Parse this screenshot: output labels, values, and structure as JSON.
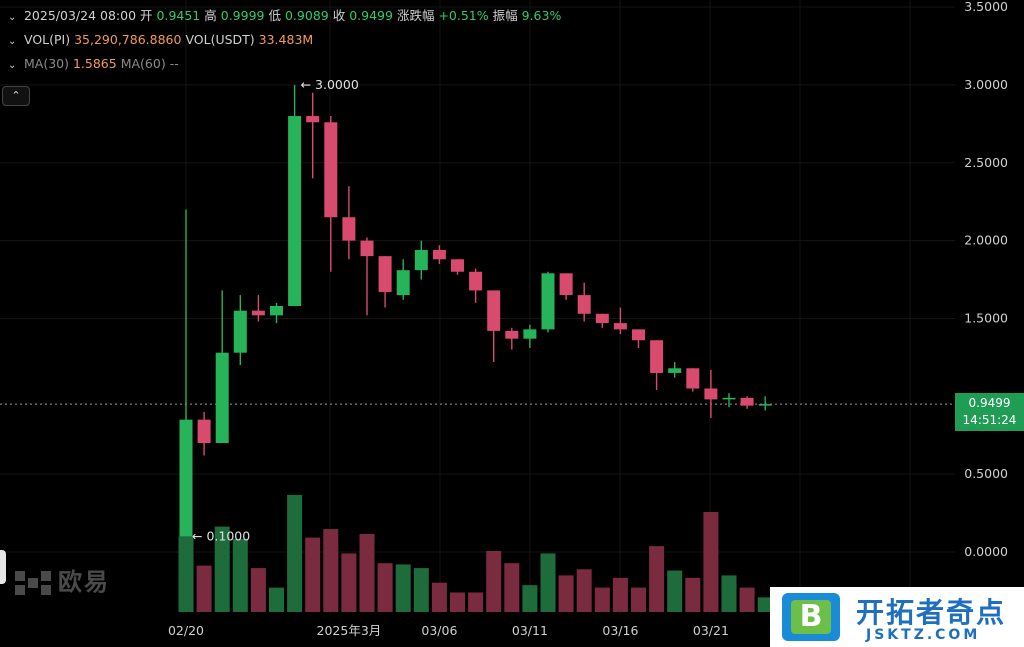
{
  "legend": {
    "row1": {
      "date": "2025/03/24 08:00",
      "open_label": "开",
      "open": "0.9451",
      "high_label": "高",
      "high": "0.9999",
      "low_label": "低",
      "low": "0.9089",
      "close_label": "收",
      "close": "0.9499",
      "change_label": "涨跌幅",
      "change": "+0.51%",
      "amp_label": "振幅",
      "amp": "9.63%"
    },
    "row2": {
      "vol_pi_label": "VOL(PI)",
      "vol_pi": "35,290,786.8860",
      "vol_usdt_label": "VOL(USDT)",
      "vol_usdt": "33.483M"
    },
    "row3": {
      "ma30_label": "MA(30)",
      "ma30": "1.5865",
      "ma60_label": "MA(60)",
      "ma60": "--"
    }
  },
  "collapse_icon": "chevron-up-icon",
  "current_price": {
    "price": "0.9499",
    "countdown": "14:51:24"
  },
  "watermark": {
    "text": "欧易"
  },
  "corner_badge": {
    "logo_letter": "B",
    "title": "开拓者奇点",
    "subtitle": "JSKTZ.COM"
  },
  "colors": {
    "up": "#26b35a",
    "down": "#d84a6e",
    "vol_up": "#1e6b3c",
    "vol_down": "#7a2b40"
  },
  "chart_data": {
    "type": "candlestick",
    "y_axis_ticks": [
      "3.5000",
      "3.0000",
      "2.5000",
      "2.0000",
      "1.5000",
      "0.9499",
      "0.5000",
      "0.0000"
    ],
    "ylim": [
      0,
      3.5
    ],
    "x_axis_labels": [
      {
        "label": "02/20",
        "index": 0
      },
      {
        "label": "2025年3月",
        "index": 9
      },
      {
        "label": "03/06",
        "index": 14
      },
      {
        "label": "03/11",
        "index": 19
      },
      {
        "label": "03/16",
        "index": 24
      },
      {
        "label": "03/21",
        "index": 29
      }
    ],
    "annotations": [
      {
        "text": "← 3.0000",
        "index": 6,
        "value": 3.0
      },
      {
        "text": "← 0.1000",
        "index": 0,
        "value": 0.1
      }
    ],
    "candles": [
      {
        "date": "02/20",
        "o": 0.1,
        "h": 2.2,
        "l": 0.1,
        "c": 0.85,
        "v": 0.62
      },
      {
        "date": "02/21",
        "o": 0.85,
        "h": 0.9,
        "l": 0.62,
        "c": 0.7,
        "v": 0.38
      },
      {
        "date": "02/22",
        "o": 0.7,
        "h": 1.68,
        "l": 0.7,
        "c": 1.28,
        "v": 0.7
      },
      {
        "date": "02/23",
        "o": 1.28,
        "h": 1.65,
        "l": 1.2,
        "c": 1.55,
        "v": 0.6
      },
      {
        "date": "02/24",
        "o": 1.55,
        "h": 1.65,
        "l": 1.48,
        "c": 1.52,
        "v": 0.36
      },
      {
        "date": "02/25",
        "o": 1.52,
        "h": 1.6,
        "l": 1.47,
        "c": 1.58,
        "v": 0.2
      },
      {
        "date": "02/26",
        "o": 1.58,
        "h": 3.0,
        "l": 1.58,
        "c": 2.8,
        "v": 0.96
      },
      {
        "date": "02/27",
        "o": 2.8,
        "h": 2.95,
        "l": 2.4,
        "c": 2.76,
        "v": 0.61
      },
      {
        "date": "02/28",
        "o": 2.76,
        "h": 2.8,
        "l": 1.8,
        "c": 2.15,
        "v": 0.68
      },
      {
        "date": "03/01",
        "o": 2.15,
        "h": 2.35,
        "l": 1.88,
        "c": 2.0,
        "v": 0.48
      },
      {
        "date": "03/02",
        "o": 2.0,
        "h": 2.02,
        "l": 1.52,
        "c": 1.9,
        "v": 0.64
      },
      {
        "date": "03/03",
        "o": 1.9,
        "h": 1.9,
        "l": 1.57,
        "c": 1.67,
        "v": 0.4
      },
      {
        "date": "03/04",
        "o": 1.65,
        "h": 1.88,
        "l": 1.62,
        "c": 1.81,
        "v": 0.39
      },
      {
        "date": "03/05",
        "o": 1.81,
        "h": 2.0,
        "l": 1.75,
        "c": 1.94,
        "v": 0.36
      },
      {
        "date": "03/06",
        "o": 1.94,
        "h": 1.97,
        "l": 1.85,
        "c": 1.88,
        "v": 0.24
      },
      {
        "date": "03/07",
        "o": 1.88,
        "h": 1.88,
        "l": 1.78,
        "c": 1.8,
        "v": 0.16
      },
      {
        "date": "03/08",
        "o": 1.8,
        "h": 1.82,
        "l": 1.6,
        "c": 1.68,
        "v": 0.16
      },
      {
        "date": "03/09",
        "o": 1.68,
        "h": 1.68,
        "l": 1.22,
        "c": 1.42,
        "v": 0.5
      },
      {
        "date": "03/10",
        "o": 1.42,
        "h": 1.44,
        "l": 1.3,
        "c": 1.37,
        "v": 0.4
      },
      {
        "date": "03/11",
        "o": 1.37,
        "h": 1.46,
        "l": 1.31,
        "c": 1.43,
        "v": 0.22
      },
      {
        "date": "03/12",
        "o": 1.43,
        "h": 1.8,
        "l": 1.41,
        "c": 1.79,
        "v": 0.48
      },
      {
        "date": "03/13",
        "o": 1.79,
        "h": 1.79,
        "l": 1.62,
        "c": 1.65,
        "v": 0.3
      },
      {
        "date": "03/14",
        "o": 1.65,
        "h": 1.73,
        "l": 1.48,
        "c": 1.53,
        "v": 0.35
      },
      {
        "date": "03/15",
        "o": 1.53,
        "h": 1.53,
        "l": 1.44,
        "c": 1.47,
        "v": 0.2
      },
      {
        "date": "03/16",
        "o": 1.47,
        "h": 1.57,
        "l": 1.4,
        "c": 1.43,
        "v": 0.28
      },
      {
        "date": "03/17",
        "o": 1.43,
        "h": 1.43,
        "l": 1.31,
        "c": 1.36,
        "v": 0.2
      },
      {
        "date": "03/18",
        "o": 1.36,
        "h": 1.36,
        "l": 1.04,
        "c": 1.15,
        "v": 0.54
      },
      {
        "date": "03/19",
        "o": 1.15,
        "h": 1.22,
        "l": 1.12,
        "c": 1.18,
        "v": 0.34
      },
      {
        "date": "03/20",
        "o": 1.18,
        "h": 1.18,
        "l": 1.03,
        "c": 1.05,
        "v": 0.28
      },
      {
        "date": "03/21",
        "o": 1.05,
        "h": 1.17,
        "l": 0.86,
        "c": 0.98,
        "v": 0.82
      },
      {
        "date": "03/22",
        "o": 0.98,
        "h": 1.02,
        "l": 0.93,
        "c": 0.99,
        "v": 0.3
      },
      {
        "date": "03/23",
        "o": 0.99,
        "h": 1.0,
        "l": 0.92,
        "c": 0.94,
        "v": 0.2
      },
      {
        "date": "03/24",
        "o": 0.9451,
        "h": 0.9999,
        "l": 0.9089,
        "c": 0.9499,
        "v": 0.12
      }
    ]
  }
}
